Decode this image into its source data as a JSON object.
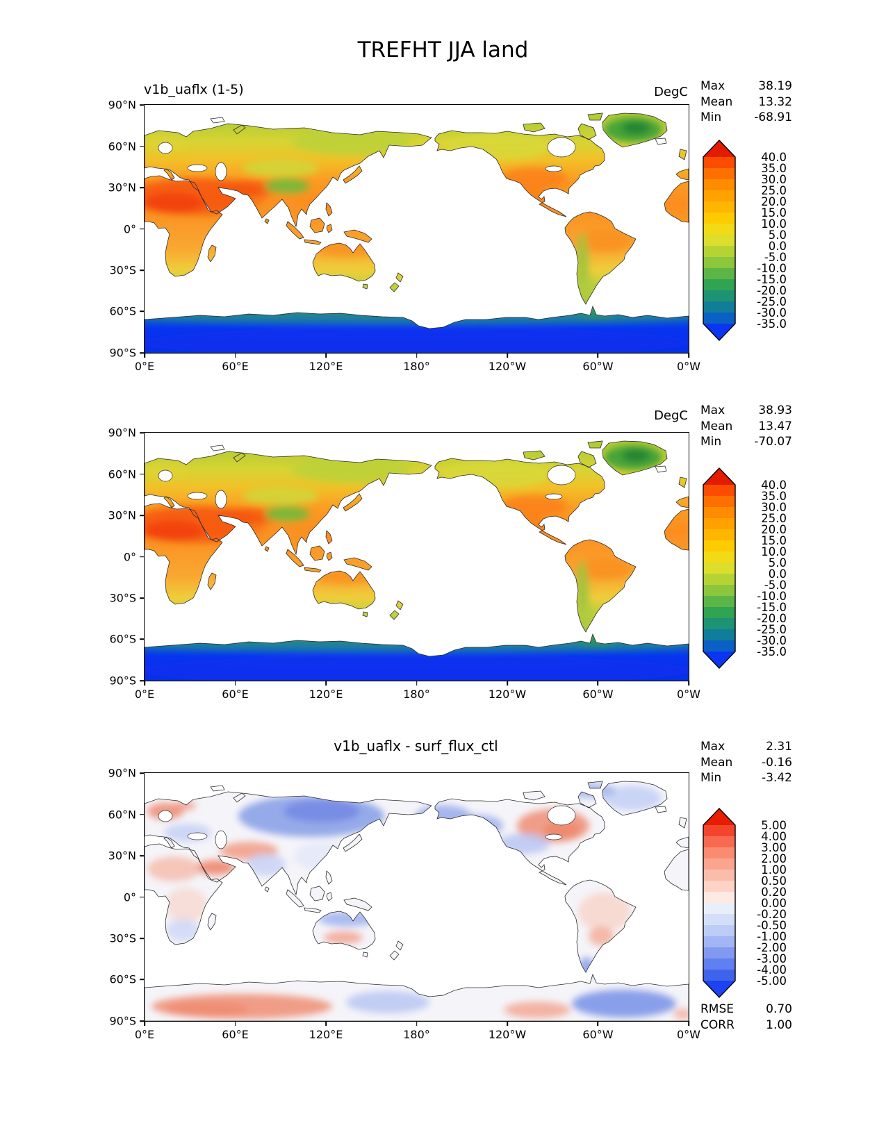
{
  "figure_title": "TREFHT JJA land",
  "panels": [
    {
      "title": "v1b_uaflx (1-5)",
      "units": "DegC",
      "colorbar": "temperature",
      "stats": [
        {
          "label": "Max",
          "value": "38.19"
        },
        {
          "label": "Mean",
          "value": "13.32"
        },
        {
          "label": "Min",
          "value": "-68.91"
        }
      ]
    },
    {
      "title": "",
      "units": "DegC",
      "colorbar": "temperature",
      "stats": [
        {
          "label": "Max",
          "value": "38.93"
        },
        {
          "label": "Mean",
          "value": "13.47"
        },
        {
          "label": "Min",
          "value": "-70.07"
        }
      ]
    },
    {
      "title": "v1b_uaflx - surf_flux_ctl",
      "units": "",
      "colorbar": "difference",
      "stats": [
        {
          "label": "Max",
          "value": "2.31"
        },
        {
          "label": "Mean",
          "value": "-0.16"
        },
        {
          "label": "Min",
          "value": "-3.42"
        }
      ],
      "extra_stats": [
        {
          "label": "RMSE",
          "value": "0.70"
        },
        {
          "label": "CORR",
          "value": "1.00"
        }
      ]
    }
  ],
  "axes": {
    "x_ticks": [
      "0°E",
      "60°E",
      "120°E",
      "180°",
      "120°W",
      "60°W",
      "0°W"
    ],
    "y_ticks": [
      "90°N",
      "60°N",
      "30°N",
      "0°",
      "30°S",
      "60°S",
      "90°S"
    ]
  },
  "colorbars": {
    "temperature": {
      "tick_labels": [
        "40.0",
        "35.0",
        "30.0",
        "25.0",
        "20.0",
        "15.0",
        "10.0",
        "5.0",
        "0.0",
        "-5.0",
        "-10.0",
        "-15.0",
        "-20.0",
        "-25.0",
        "-30.0",
        "-35.0"
      ],
      "colors": [
        "#e31b00",
        "#fb4c00",
        "#fd7000",
        "#fe8b00",
        "#ffa200",
        "#ffb600",
        "#fecb00",
        "#f3da16",
        "#dcdd2c",
        "#b5d434",
        "#8bc63d",
        "#5cb647",
        "#30a452",
        "#1e9374",
        "#107e98",
        "#0b60c6",
        "#0a36f2"
      ]
    },
    "difference": {
      "tick_labels": [
        "5.00",
        "4.00",
        "3.00",
        "2.00",
        "1.00",
        "0.50",
        "0.20",
        "0.00",
        "-0.20",
        "-0.50",
        "-1.00",
        "-2.00",
        "-3.00",
        "-4.00",
        "-5.00"
      ],
      "colors": [
        "#e81c00",
        "#f4452c",
        "#f76950",
        "#fa8a70",
        "#fba58f",
        "#fcbcaa",
        "#fdd3c5",
        "#feeae2",
        "#e9eefb",
        "#d5def9",
        "#bdccf7",
        "#a2b5f4",
        "#8199f0",
        "#607ff0",
        "#3e64ec",
        "#1c42f2"
      ]
    }
  },
  "chart_data": [
    {
      "type": "heatmap",
      "title": "v1b_uaflx (1-5)",
      "units": "DegC",
      "projection": "global lat-lon map, longitude 0E to 0W (180 centered), land only, ocean masked white",
      "x_ticks": [
        "0°E",
        "60°E",
        "120°E",
        "180°",
        "120°W",
        "60°W",
        "0°W"
      ],
      "y_ticks": [
        "90°N",
        "60°N",
        "30°N",
        "0°",
        "30°S",
        "60°S",
        "90°S"
      ],
      "contour_levels": [
        40,
        35,
        30,
        25,
        20,
        15,
        10,
        5,
        0,
        -5,
        -10,
        -15,
        -20,
        -25,
        -30,
        -35
      ],
      "stats": {
        "max": 38.19,
        "mean": 13.32,
        "min": -68.91
      }
    },
    {
      "type": "heatmap",
      "title": "",
      "units": "DegC",
      "projection": "global lat-lon map, longitude 0E to 0W (180 centered), land only, ocean masked white",
      "x_ticks": [
        "0°E",
        "60°E",
        "120°E",
        "180°",
        "120°W",
        "60°W",
        "0°W"
      ],
      "y_ticks": [
        "90°N",
        "60°N",
        "30°N",
        "0°",
        "30°S",
        "60°S",
        "90°S"
      ],
      "contour_levels": [
        40,
        35,
        30,
        25,
        20,
        15,
        10,
        5,
        0,
        -5,
        -10,
        -15,
        -20,
        -25,
        -30,
        -35
      ],
      "stats": {
        "max": 38.93,
        "mean": 13.47,
        "min": -70.07
      }
    },
    {
      "type": "heatmap",
      "title": "v1b_uaflx - surf_flux_ctl",
      "units": "",
      "projection": "global lat-lon difference map, longitude 0E to 0W (180 centered), land only, ocean masked white",
      "x_ticks": [
        "0°E",
        "60°E",
        "120°E",
        "180°",
        "120°W",
        "60°W",
        "0°W"
      ],
      "y_ticks": [
        "90°N",
        "60°N",
        "30°N",
        "0°",
        "30°S",
        "60°S",
        "90°S"
      ],
      "contour_levels": [
        5,
        4,
        3,
        2,
        1,
        0.5,
        0.2,
        0,
        -0.2,
        -0.5,
        -1,
        -2,
        -3,
        -4,
        -5
      ],
      "stats": {
        "max": 2.31,
        "mean": -0.16,
        "min": -3.42,
        "rmse": 0.7,
        "corr": 1.0
      }
    }
  ]
}
